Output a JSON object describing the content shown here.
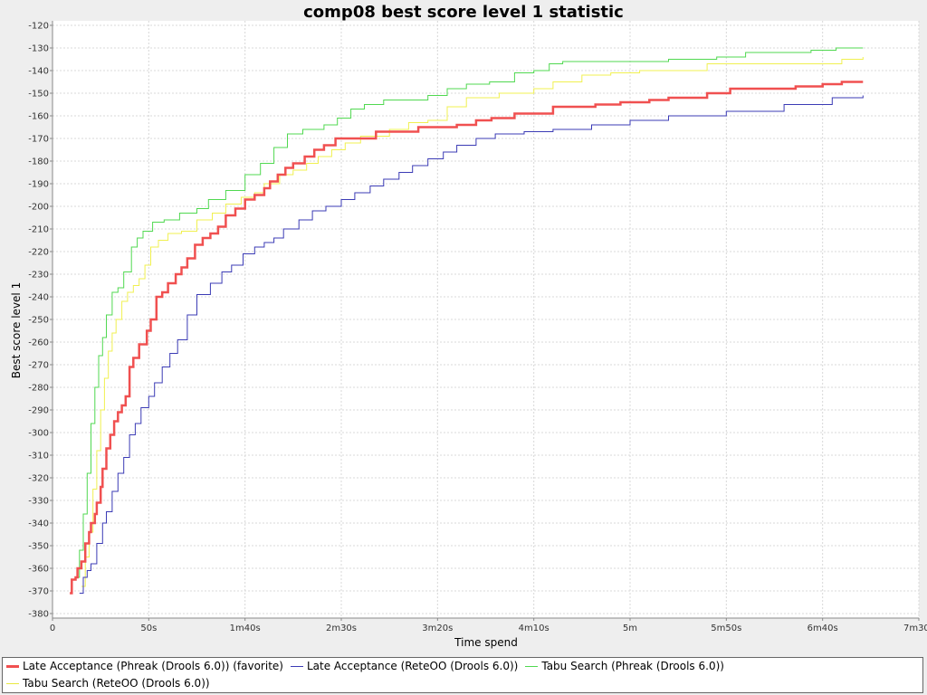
{
  "chart_data": {
    "type": "line",
    "title": "comp08 best score level 1 statistic",
    "xlabel": "Time spend",
    "ylabel": "Best score level 1",
    "x_unit": "seconds",
    "xlim": [
      0,
      450
    ],
    "ylim": [
      -382,
      -118
    ],
    "x_tick_labels": [
      {
        "value": 0,
        "label": "0"
      },
      {
        "value": 50,
        "label": "50s"
      },
      {
        "value": 100,
        "label": "1m40s"
      },
      {
        "value": 150,
        "label": "2m30s"
      },
      {
        "value": 200,
        "label": "3m20s"
      },
      {
        "value": 250,
        "label": "4m10s"
      },
      {
        "value": 300,
        "label": "5m"
      },
      {
        "value": 350,
        "label": "5m50s"
      },
      {
        "value": 400,
        "label": "6m40s"
      },
      {
        "value": 450,
        "label": "7m30s"
      }
    ],
    "y_ticks": [
      -380,
      -370,
      -360,
      -350,
      -340,
      -330,
      -320,
      -310,
      -300,
      -290,
      -280,
      -270,
      -260,
      -250,
      -240,
      -230,
      -220,
      -210,
      -200,
      -190,
      -180,
      -170,
      -160,
      -150,
      -140,
      -130,
      -120
    ],
    "grid": true,
    "legend_position": "bottom",
    "series": [
      {
        "name": "Late Acceptance (Phreak (Drools 6.0)) (favorite)",
        "color": "#f05050",
        "points": [
          [
            9,
            -371
          ],
          [
            10,
            -365
          ],
          [
            12,
            -364
          ],
          [
            13,
            -360
          ],
          [
            15,
            -357
          ],
          [
            17,
            -349
          ],
          [
            19,
            -344
          ],
          [
            20,
            -340
          ],
          [
            22,
            -336
          ],
          [
            23,
            -331
          ],
          [
            25,
            -324
          ],
          [
            26,
            -316
          ],
          [
            28,
            -307
          ],
          [
            30,
            -301
          ],
          [
            32,
            -295
          ],
          [
            34,
            -291
          ],
          [
            36,
            -288
          ],
          [
            38,
            -284
          ],
          [
            40,
            -271
          ],
          [
            42,
            -267
          ],
          [
            45,
            -261
          ],
          [
            49,
            -255
          ],
          [
            51,
            -250
          ],
          [
            54,
            -240
          ],
          [
            57,
            -238
          ],
          [
            60,
            -234
          ],
          [
            64,
            -230
          ],
          [
            67,
            -227
          ],
          [
            70,
            -223
          ],
          [
            74,
            -217
          ],
          [
            78,
            -214
          ],
          [
            82,
            -212
          ],
          [
            86,
            -209
          ],
          [
            90,
            -204
          ],
          [
            95,
            -201
          ],
          [
            100,
            -197
          ],
          [
            105,
            -195
          ],
          [
            110,
            -192
          ],
          [
            113,
            -189
          ],
          [
            117,
            -186
          ],
          [
            121,
            -183
          ],
          [
            125,
            -181
          ],
          [
            131,
            -178
          ],
          [
            136,
            -175
          ],
          [
            141,
            -173
          ],
          [
            147,
            -170
          ],
          [
            168,
            -167
          ],
          [
            190,
            -165
          ],
          [
            210,
            -164
          ],
          [
            220,
            -162
          ],
          [
            228,
            -161
          ],
          [
            240,
            -159
          ],
          [
            260,
            -156
          ],
          [
            282,
            -155
          ],
          [
            295,
            -154
          ],
          [
            310,
            -153
          ],
          [
            320,
            -152
          ],
          [
            340,
            -150
          ],
          [
            352,
            -148
          ],
          [
            386,
            -147
          ],
          [
            400,
            -146
          ],
          [
            410,
            -145
          ],
          [
            421,
            -145
          ]
        ]
      },
      {
        "name": "Late Acceptance (RetеOO (Drools 6.0))",
        "color": "#3b3bb5",
        "points": [
          [
            14,
            -371
          ],
          [
            16,
            -364
          ],
          [
            18,
            -361
          ],
          [
            20,
            -358
          ],
          [
            23,
            -349
          ],
          [
            26,
            -340
          ],
          [
            28,
            -335
          ],
          [
            31,
            -326
          ],
          [
            34,
            -318
          ],
          [
            37,
            -311
          ],
          [
            40,
            -301
          ],
          [
            43,
            -296
          ],
          [
            46,
            -289
          ],
          [
            50,
            -284
          ],
          [
            53,
            -278
          ],
          [
            57,
            -271
          ],
          [
            61,
            -265
          ],
          [
            65,
            -259
          ],
          [
            70,
            -248
          ],
          [
            75,
            -239
          ],
          [
            82,
            -234
          ],
          [
            88,
            -229
          ],
          [
            93,
            -226
          ],
          [
            99,
            -221
          ],
          [
            105,
            -218
          ],
          [
            110,
            -216
          ],
          [
            115,
            -214
          ],
          [
            120,
            -210
          ],
          [
            128,
            -206
          ],
          [
            135,
            -202
          ],
          [
            142,
            -200
          ],
          [
            150,
            -197
          ],
          [
            157,
            -194
          ],
          [
            165,
            -191
          ],
          [
            172,
            -188
          ],
          [
            180,
            -185
          ],
          [
            187,
            -182
          ],
          [
            195,
            -179
          ],
          [
            203,
            -176
          ],
          [
            210,
            -173
          ],
          [
            220,
            -170
          ],
          [
            230,
            -168
          ],
          [
            245,
            -167
          ],
          [
            260,
            -166
          ],
          [
            280,
            -164
          ],
          [
            300,
            -162
          ],
          [
            320,
            -160
          ],
          [
            350,
            -158
          ],
          [
            380,
            -155
          ],
          [
            405,
            -152
          ],
          [
            421,
            -151
          ]
        ]
      },
      {
        "name": "Tabu Search (Phreak (Drools 6.0))",
        "color": "#50d850",
        "points": [
          [
            12,
            -364
          ],
          [
            14,
            -352
          ],
          [
            16,
            -336
          ],
          [
            18,
            -318
          ],
          [
            20,
            -296
          ],
          [
            22,
            -280
          ],
          [
            24,
            -266
          ],
          [
            26,
            -258
          ],
          [
            28,
            -248
          ],
          [
            31,
            -238
          ],
          [
            34,
            -236
          ],
          [
            37,
            -229
          ],
          [
            41,
            -218
          ],
          [
            44,
            -214
          ],
          [
            47,
            -211
          ],
          [
            52,
            -207
          ],
          [
            58,
            -206
          ],
          [
            66,
            -203
          ],
          [
            75,
            -201
          ],
          [
            81,
            -197
          ],
          [
            90,
            -193
          ],
          [
            100,
            -186
          ],
          [
            108,
            -181
          ],
          [
            115,
            -174
          ],
          [
            122,
            -168
          ],
          [
            130,
            -166
          ],
          [
            141,
            -164
          ],
          [
            148,
            -161
          ],
          [
            155,
            -157
          ],
          [
            162,
            -155
          ],
          [
            172,
            -153
          ],
          [
            195,
            -151
          ],
          [
            205,
            -148
          ],
          [
            215,
            -146
          ],
          [
            227,
            -145
          ],
          [
            240,
            -141
          ],
          [
            250,
            -140
          ],
          [
            258,
            -137
          ],
          [
            265,
            -136
          ],
          [
            320,
            -135
          ],
          [
            345,
            -134
          ],
          [
            360,
            -132
          ],
          [
            394,
            -131
          ],
          [
            407,
            -130
          ],
          [
            421,
            -130
          ]
        ]
      },
      {
        "name": "Tabu Search (RetеOO (Drools 6.0))",
        "color": "#f0f050",
        "points": [
          [
            15,
            -368
          ],
          [
            17,
            -355
          ],
          [
            19,
            -344
          ],
          [
            21,
            -325
          ],
          [
            23,
            -308
          ],
          [
            25,
            -290
          ],
          [
            27,
            -276
          ],
          [
            29,
            -264
          ],
          [
            31,
            -256
          ],
          [
            33,
            -250
          ],
          [
            36,
            -242
          ],
          [
            39,
            -238
          ],
          [
            42,
            -235
          ],
          [
            45,
            -232
          ],
          [
            48,
            -226
          ],
          [
            51,
            -218
          ],
          [
            55,
            -215
          ],
          [
            60,
            -212
          ],
          [
            67,
            -211
          ],
          [
            75,
            -206
          ],
          [
            83,
            -203
          ],
          [
            90,
            -199
          ],
          [
            98,
            -196
          ],
          [
            105,
            -194
          ],
          [
            110,
            -190
          ],
          [
            118,
            -186
          ],
          [
            125,
            -184
          ],
          [
            132,
            -181
          ],
          [
            138,
            -178
          ],
          [
            145,
            -175
          ],
          [
            152,
            -172
          ],
          [
            160,
            -169
          ],
          [
            175,
            -166
          ],
          [
            185,
            -163
          ],
          [
            195,
            -162
          ],
          [
            205,
            -156
          ],
          [
            215,
            -152
          ],
          [
            232,
            -150
          ],
          [
            250,
            -148
          ],
          [
            260,
            -145
          ],
          [
            275,
            -142
          ],
          [
            290,
            -141
          ],
          [
            305,
            -140
          ],
          [
            340,
            -137
          ],
          [
            410,
            -135
          ],
          [
            421,
            -134
          ]
        ]
      }
    ]
  }
}
